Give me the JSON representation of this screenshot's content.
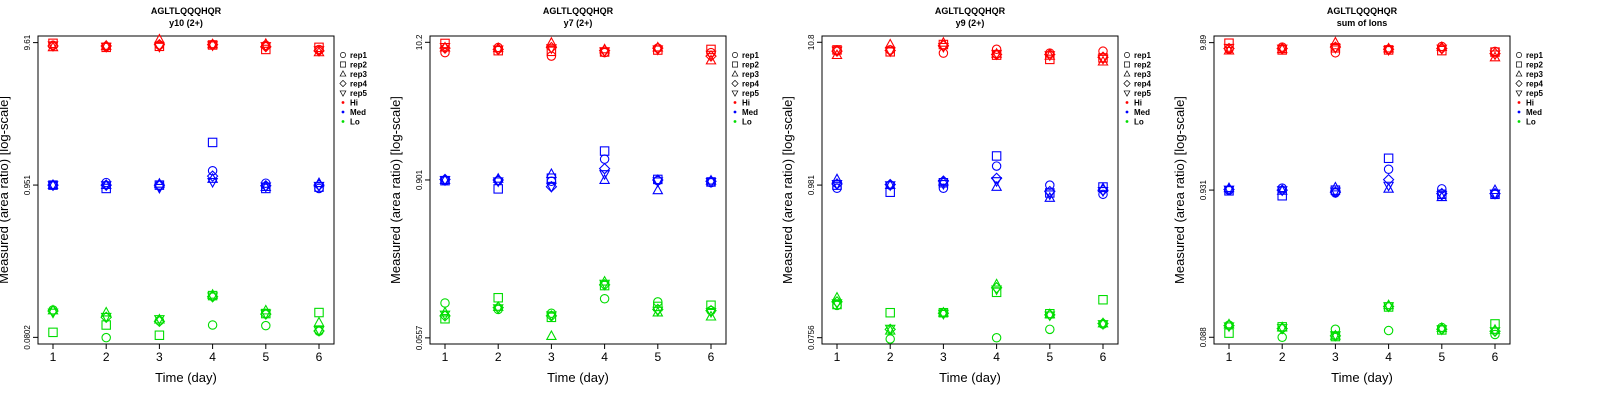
{
  "colors": {
    "Hi": "#ff0000",
    "Med": "#0000ff",
    "Lo": "#00dd00"
  },
  "chart_data": [
    {
      "type": "scatter",
      "title": "AGLTLQQQHQR",
      "subtitle": "y10 (2+)",
      "xlabel": "Time (day)",
      "ylabel": "Measured (area ratio) [log-scale]",
      "yscale": "log",
      "xticks": [
        "1",
        "2",
        "3",
        "4",
        "5",
        "6"
      ],
      "yticks": [
        {
          "value": 0.0802,
          "label": "0.0802"
        },
        {
          "value": 0.951,
          "label": "0.951"
        },
        {
          "value": 9.61,
          "label": "9.61"
        }
      ],
      "ylim": [
        0.072,
        10.7
      ],
      "legend": {
        "position": "right",
        "shapes": [
          "rep1",
          "rep2",
          "rep3",
          "rep4",
          "rep5"
        ],
        "levels": [
          "Hi",
          "Med",
          "Lo"
        ]
      },
      "series": [
        {
          "rep": "rep1",
          "level": "Hi",
          "values": [
            9.2,
            9.0,
            9.25,
            9.3,
            9.2,
            8.6
          ]
        },
        {
          "rep": "rep2",
          "level": "Hi",
          "values": [
            9.5,
            8.9,
            9.05,
            9.25,
            8.6,
            8.9
          ]
        },
        {
          "rep": "rep3",
          "level": "Hi",
          "values": [
            8.9,
            9.1,
            10.1,
            9.35,
            9.4,
            8.2
          ]
        },
        {
          "rep": "rep4",
          "level": "Hi",
          "values": [
            9.1,
            9.1,
            9.3,
            9.3,
            9.0,
            8.4
          ]
        },
        {
          "rep": "rep5",
          "level": "Hi",
          "values": [
            9.2,
            9.0,
            9.0,
            9.2,
            9.1,
            8.5
          ]
        },
        {
          "rep": "rep1",
          "level": "Med",
          "values": [
            0.95,
            0.99,
            0.95,
            1.2,
            0.98,
            0.9
          ]
        },
        {
          "rep": "rep2",
          "level": "Med",
          "values": [
            0.95,
            0.9,
            0.95,
            1.9,
            0.9,
            0.92
          ]
        },
        {
          "rep": "rep3",
          "level": "Med",
          "values": [
            0.95,
            0.95,
            0.97,
            1.05,
            0.92,
            0.98
          ]
        },
        {
          "rep": "rep4",
          "level": "Med",
          "values": [
            0.95,
            0.95,
            0.94,
            1.1,
            0.94,
            0.95
          ]
        },
        {
          "rep": "rep5",
          "level": "Med",
          "values": [
            0.95,
            0.95,
            0.91,
            1.0,
            0.93,
            0.94
          ]
        },
        {
          "rep": "rep1",
          "level": "Lo",
          "values": [
            0.125,
            0.0798,
            0.105,
            0.098,
            0.097,
            0.0885
          ]
        },
        {
          "rep": "rep2",
          "level": "Lo",
          "values": [
            0.087,
            0.098,
            0.083,
            0.158,
            0.118,
            0.12
          ]
        },
        {
          "rep": "rep3",
          "level": "Lo",
          "values": [
            0.124,
            0.12,
            0.107,
            0.16,
            0.124,
            0.102
          ]
        },
        {
          "rep": "rep4",
          "level": "Lo",
          "values": [
            0.123,
            0.111,
            0.104,
            0.155,
            0.117,
            0.089
          ]
        },
        {
          "rep": "rep5",
          "level": "Lo",
          "values": [
            0.12,
            0.112,
            0.108,
            0.156,
            0.118,
            0.09
          ]
        }
      ]
    },
    {
      "type": "scatter",
      "title": "AGLTLQQQHQR",
      "subtitle": "y7 (2+)",
      "xlabel": "Time (day)",
      "ylabel": "Measured (area ratio) [log-scale]",
      "yscale": "log",
      "xticks": [
        "1",
        "2",
        "3",
        "4",
        "5",
        "6"
      ],
      "yticks": [
        {
          "value": 0.0557,
          "label": "0.0557"
        },
        {
          "value": 0.901,
          "label": "0.901"
        },
        {
          "value": 10.2,
          "label": "10.2"
        }
      ],
      "ylim": [
        0.05,
        11.4
      ],
      "legend": {
        "position": "right",
        "shapes": [
          "rep1",
          "rep2",
          "rep3",
          "rep4",
          "rep5"
        ],
        "levels": [
          "Hi",
          "Med",
          "Lo"
        ]
      },
      "series": [
        {
          "rep": "rep1",
          "level": "Hi",
          "values": [
            8.5,
            9.3,
            8.0,
            8.5,
            9.2,
            8.5
          ]
        },
        {
          "rep": "rep2",
          "level": "Hi",
          "values": [
            10.0,
            8.8,
            8.7,
            8.6,
            8.9,
            9.0
          ]
        },
        {
          "rep": "rep3",
          "level": "Hi",
          "values": [
            9.3,
            9.2,
            10.1,
            9.0,
            9.3,
            7.4
          ]
        },
        {
          "rep": "rep4",
          "level": "Hi",
          "values": [
            9.2,
            9.0,
            9.3,
            8.8,
            9.2,
            8.0
          ]
        },
        {
          "rep": "rep5",
          "level": "Hi",
          "values": [
            9.4,
            9.0,
            9.2,
            8.7,
            9.0,
            8.2
          ]
        },
        {
          "rep": "rep1",
          "level": "Med",
          "values": [
            0.89,
            0.89,
            0.88,
            1.3,
            0.89,
            0.86
          ]
        },
        {
          "rep": "rep2",
          "level": "Med",
          "values": [
            0.89,
            0.77,
            0.93,
            1.5,
            0.91,
            0.87
          ]
        },
        {
          "rep": "rep3",
          "level": "Med",
          "values": [
            0.9,
            0.92,
            1.0,
            0.9,
            0.75,
            0.89
          ]
        },
        {
          "rep": "rep4",
          "level": "Med",
          "values": [
            0.91,
            0.9,
            0.8,
            1.1,
            0.9,
            0.88
          ]
        },
        {
          "rep": "rep5",
          "level": "Med",
          "values": [
            0.9,
            0.88,
            0.8,
            1.0,
            0.88,
            0.87
          ]
        },
        {
          "rep": "rep1",
          "level": "Lo",
          "values": [
            0.103,
            0.092,
            0.086,
            0.111,
            0.105,
            0.09
          ]
        },
        {
          "rep": "rep2",
          "level": "Lo",
          "values": [
            0.078,
            0.113,
            0.08,
            0.14,
            0.097,
            0.099
          ]
        },
        {
          "rep": "rep3",
          "level": "Lo",
          "values": [
            0.087,
            0.096,
            0.0575,
            0.15,
            0.087,
            0.081
          ]
        },
        {
          "rep": "rep4",
          "level": "Lo",
          "values": [
            0.082,
            0.095,
            0.082,
            0.142,
            0.092,
            0.09
          ]
        },
        {
          "rep": "rep5",
          "level": "Lo",
          "values": [
            0.084,
            0.094,
            0.083,
            0.145,
            0.09,
            0.088
          ]
        }
      ]
    },
    {
      "type": "scatter",
      "title": "AGLTLQQQHQR",
      "subtitle": "y9 (2+)",
      "xlabel": "Time (day)",
      "ylabel": "Measured (area ratio) [log-scale]",
      "yscale": "log",
      "xticks": [
        "1",
        "2",
        "3",
        "4",
        "5",
        "6"
      ],
      "yticks": [
        {
          "value": 0.0756,
          "label": "0.0756"
        },
        {
          "value": 0.981,
          "label": "0.981"
        },
        {
          "value": 10.8,
          "label": "10.8"
        }
      ],
      "ylim": [
        0.068,
        12.0
      ],
      "legend": {
        "position": "right",
        "shapes": [
          "rep1",
          "rep2",
          "rep3",
          "rep4",
          "rep5"
        ],
        "levels": [
          "Hi",
          "Med",
          "Lo"
        ]
      },
      "series": [
        {
          "rep": "rep1",
          "level": "Hi",
          "values": [
            9.5,
            9.5,
            9.0,
            9.6,
            9.0,
            9.3
          ]
        },
        {
          "rep": "rep2",
          "level": "Hi",
          "values": [
            9.5,
            9.2,
            10.4,
            8.7,
            8.1,
            8.3
          ]
        },
        {
          "rep": "rep3",
          "level": "Hi",
          "values": [
            8.7,
            10.4,
            10.7,
            8.9,
            8.6,
            7.8
          ]
        },
        {
          "rep": "rep4",
          "level": "Hi",
          "values": [
            9.3,
            9.4,
            10.2,
            8.8,
            8.8,
            8.4
          ]
        },
        {
          "rep": "rep5",
          "level": "Hi",
          "values": [
            9.4,
            9.3,
            10.0,
            8.9,
            8.7,
            8.2
          ]
        },
        {
          "rep": "rep1",
          "level": "Med",
          "values": [
            0.93,
            0.98,
            0.93,
            1.35,
            0.98,
            0.84
          ]
        },
        {
          "rep": "rep2",
          "level": "Med",
          "values": [
            0.98,
            0.87,
            1.02,
            1.6,
            0.86,
            0.95
          ]
        },
        {
          "rep": "rep3",
          "level": "Med",
          "values": [
            1.08,
            0.98,
            1.04,
            0.95,
            0.79,
            0.93
          ]
        },
        {
          "rep": "rep4",
          "level": "Med",
          "values": [
            1.0,
            0.99,
            1.05,
            1.1,
            0.88,
            0.9
          ]
        },
        {
          "rep": "rep5",
          "level": "Med",
          "values": [
            1.0,
            0.98,
            1.0,
            1.05,
            0.84,
            0.89
          ]
        },
        {
          "rep": "rep1",
          "level": "Lo",
          "values": [
            0.13,
            0.074,
            0.115,
            0.0755,
            0.087,
            0.095
          ]
        },
        {
          "rep": "rep2",
          "level": "Lo",
          "values": [
            0.132,
            0.115,
            0.115,
            0.162,
            0.113,
            0.143
          ]
        },
        {
          "rep": "rep3",
          "level": "Lo",
          "values": [
            0.148,
            0.085,
            0.115,
            0.185,
            0.112,
            0.096
          ]
        },
        {
          "rep": "rep4",
          "level": "Lo",
          "values": [
            0.138,
            0.087,
            0.114,
            0.175,
            0.111,
            0.096
          ]
        },
        {
          "rep": "rep5",
          "level": "Lo",
          "values": [
            0.135,
            0.088,
            0.113,
            0.17,
            0.11,
            0.095
          ]
        }
      ]
    },
    {
      "type": "scatter",
      "title": "AGLTLQQQHQR",
      "subtitle": "sum of Ions",
      "xlabel": "Time (day)",
      "ylabel": "Measured (area ratio) [log-scale]",
      "yscale": "log",
      "xticks": [
        "1",
        "2",
        "3",
        "4",
        "5",
        "6"
      ],
      "yticks": [
        {
          "value": 0.088,
          "label": "0.088"
        },
        {
          "value": 0.931,
          "label": "0.931"
        },
        {
          "value": 9.89,
          "label": "9.89"
        }
      ],
      "ylim": [
        0.079,
        11.0
      ],
      "legend": {
        "position": "right",
        "shapes": [
          "rep1",
          "rep2",
          "rep3",
          "rep4",
          "rep5"
        ],
        "levels": [
          "Hi",
          "Med",
          "Lo"
        ]
      },
      "series": [
        {
          "rep": "rep1",
          "level": "Hi",
          "values": [
            8.9,
            9.2,
            8.4,
            8.9,
            9.3,
            8.6
          ]
        },
        {
          "rep": "rep2",
          "level": "Hi",
          "values": [
            9.8,
            8.8,
            9.1,
            8.8,
            8.7,
            8.5
          ]
        },
        {
          "rep": "rep3",
          "level": "Hi",
          "values": [
            8.7,
            8.9,
            9.9,
            9.0,
            9.2,
            7.8
          ]
        },
        {
          "rep": "rep4",
          "level": "Hi",
          "values": [
            9.0,
            9.0,
            9.2,
            8.9,
            9.0,
            8.3
          ]
        },
        {
          "rep": "rep5",
          "level": "Hi",
          "values": [
            9.1,
            9.0,
            9.1,
            8.8,
            9.0,
            8.2
          ]
        },
        {
          "rep": "rep1",
          "level": "Med",
          "values": [
            0.93,
            0.96,
            0.89,
            1.3,
            0.95,
            0.87
          ]
        },
        {
          "rep": "rep2",
          "level": "Med",
          "values": [
            0.92,
            0.85,
            0.93,
            1.55,
            0.87,
            0.87
          ]
        },
        {
          "rep": "rep3",
          "level": "Med",
          "values": [
            0.96,
            0.92,
            0.97,
            0.95,
            0.83,
            0.93
          ]
        },
        {
          "rep": "rep4",
          "level": "Med",
          "values": [
            0.94,
            0.93,
            0.9,
            1.1,
            0.88,
            0.88
          ]
        },
        {
          "rep": "rep5",
          "level": "Med",
          "values": [
            0.94,
            0.93,
            0.91,
            1.0,
            0.86,
            0.88
          ]
        },
        {
          "rep": "rep1",
          "level": "Lo",
          "values": [
            0.107,
            0.088,
            0.1,
            0.098,
            0.103,
            0.092
          ]
        },
        {
          "rep": "rep2",
          "level": "Lo",
          "values": [
            0.094,
            0.104,
            0.089,
            0.143,
            0.099,
            0.109
          ]
        },
        {
          "rep": "rep3",
          "level": "Lo",
          "values": [
            0.108,
            0.103,
            0.09,
            0.147,
            0.102,
            0.099
          ]
        },
        {
          "rep": "rep4",
          "level": "Lo",
          "values": [
            0.106,
            0.101,
            0.09,
            0.144,
            0.1,
            0.097
          ]
        },
        {
          "rep": "rep5",
          "level": "Lo",
          "values": [
            0.105,
            0.102,
            0.091,
            0.145,
            0.1,
            0.097
          ]
        }
      ]
    }
  ]
}
